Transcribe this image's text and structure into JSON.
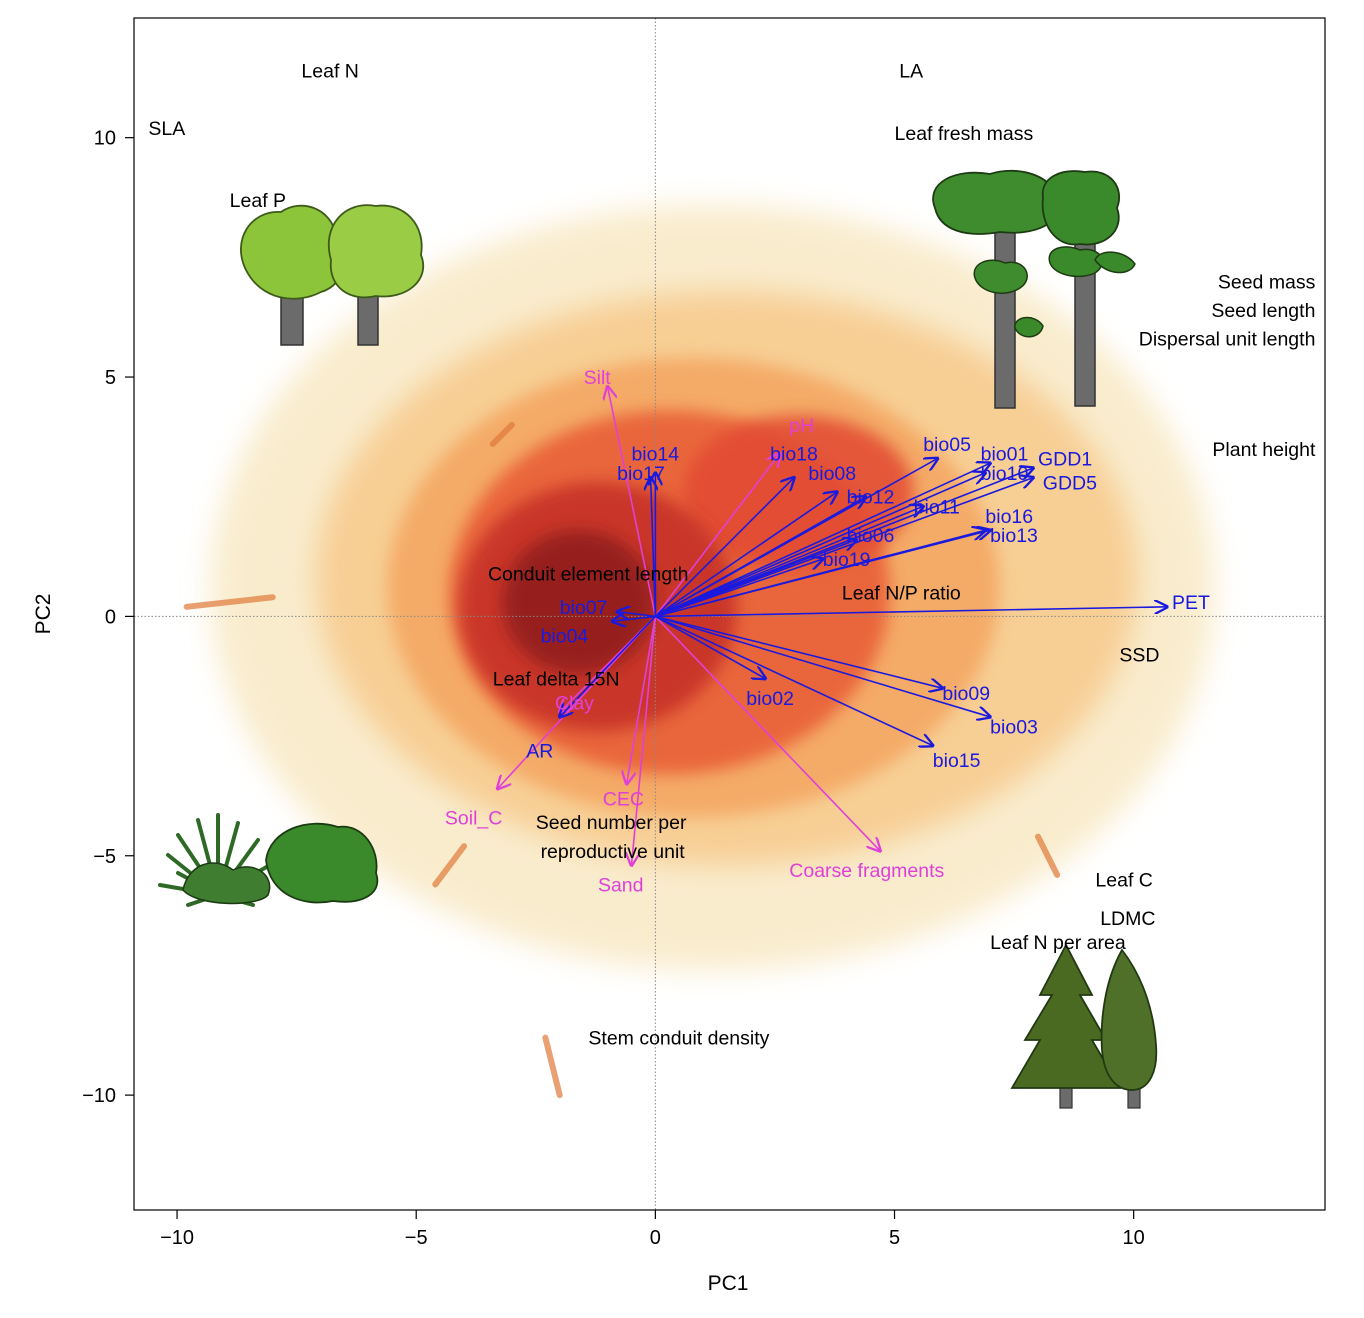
{
  "chart_data": {
    "type": "scatter",
    "subtype": "pca-biplot-density",
    "xlabel": "PC1",
    "ylabel": "PC2",
    "xlim": [
      -10.9,
      14.0
    ],
    "ylim": [
      -12.4,
      12.5
    ],
    "xticks": [
      -10,
      -5,
      0,
      5,
      10
    ],
    "yticks": [
      -10,
      -5,
      0,
      5,
      10
    ],
    "xtick_labels": [
      "−10",
      "−5",
      "0",
      "5",
      "10"
    ],
    "ytick_labels": [
      "−10",
      "−5",
      "0",
      "5",
      "10"
    ],
    "grid": false,
    "zero_lines": true,
    "colors": {
      "climate_vectors": "#1a1adf",
      "soil_vectors": "#e040d8",
      "trait_labels": "#000000",
      "density_low": "#f7e3b2",
      "density_mid": "#f08a4a",
      "density_high": "#e04a2e",
      "density_peak": "#8c1c1c"
    },
    "density_regions": [
      {
        "level": "low",
        "center": [
          1.2,
          0.6
        ],
        "radius": [
          10.5,
          8.0
        ],
        "color": "#f8e6bd"
      },
      {
        "level": "low-mid",
        "center": [
          1.5,
          0.8
        ],
        "radius": [
          8.6,
          6.0
        ],
        "color": "#f7c98b"
      },
      {
        "level": "mid",
        "center": [
          0.8,
          0.6
        ],
        "radius": [
          6.4,
          4.8
        ],
        "color": "#f4a561"
      },
      {
        "level": "high",
        "center": [
          0.3,
          0.5
        ],
        "radius": [
          4.6,
          3.8
        ],
        "color": "#e85a36"
      },
      {
        "level": "high",
        "center": [
          3.0,
          2.6
        ],
        "radius": [
          2.4,
          1.6
        ],
        "color": "#e24a30"
      },
      {
        "level": "very-high",
        "center": [
          -1.2,
          0.2
        ],
        "radius": [
          2.9,
          2.6
        ],
        "color": "#c42f26"
      },
      {
        "level": "peak",
        "center": [
          -1.6,
          0.3
        ],
        "radius": [
          1.6,
          1.5
        ],
        "color": "#8e1c1c"
      }
    ],
    "streaks": [
      {
        "from": [
          -8.0,
          0.4
        ],
        "to": [
          -9.8,
          0.2
        ]
      },
      {
        "from": [
          -3.4,
          3.6
        ],
        "to": [
          -3.0,
          4.0
        ]
      },
      {
        "from": [
          -2.3,
          -8.8
        ],
        "to": [
          -2.0,
          -10.0
        ]
      },
      {
        "from": [
          -4.0,
          -4.8
        ],
        "to": [
          -4.6,
          -5.6
        ]
      },
      {
        "from": [
          8.0,
          -4.6
        ],
        "to": [
          8.4,
          -5.4
        ]
      }
    ],
    "climate_vectors": [
      {
        "name": "PET",
        "x": 10.7,
        "y": 0.2,
        "label_x": 10.8,
        "label_y": 0.3
      },
      {
        "name": "GDD1",
        "x": 7.9,
        "y": 3.1,
        "label_x": 8.0,
        "label_y": 3.3
      },
      {
        "name": "GDD5",
        "x": 7.9,
        "y": 2.9,
        "label_x": 8.1,
        "label_y": 2.8
      },
      {
        "name": "bio01",
        "x": 7.0,
        "y": 3.2,
        "label_x": 6.8,
        "label_y": 3.4
      },
      {
        "name": "bio10",
        "x": 6.9,
        "y": 3.0,
        "label_x": 6.8,
        "label_y": 3.0
      },
      {
        "name": "bio05",
        "x": 5.9,
        "y": 3.3,
        "label_x": 5.6,
        "label_y": 3.6
      },
      {
        "name": "bio16",
        "x": 7.0,
        "y": 1.8,
        "label_x": 6.9,
        "label_y": 2.1
      },
      {
        "name": "bio13",
        "x": 6.9,
        "y": 1.8,
        "label_x": 7.0,
        "label_y": 1.7
      },
      {
        "name": "bio11",
        "x": 5.6,
        "y": 2.3,
        "label_x": 5.4,
        "label_y": 2.3
      },
      {
        "name": "bio12",
        "x": 4.4,
        "y": 2.5,
        "label_x": 4.0,
        "label_y": 2.5
      },
      {
        "name": "bio08",
        "x": 3.8,
        "y": 2.6,
        "label_x": 3.2,
        "label_y": 3.0
      },
      {
        "name": "bio18",
        "x": 2.9,
        "y": 2.9,
        "label_x": 2.4,
        "label_y": 3.4
      },
      {
        "name": "bio06",
        "x": 4.2,
        "y": 1.6,
        "label_x": 4.0,
        "label_y": 1.7
      },
      {
        "name": "bio19",
        "x": 3.5,
        "y": 1.2,
        "label_x": 3.5,
        "label_y": 1.2
      },
      {
        "name": "bio14",
        "x": 0.0,
        "y": 3.0,
        "label_x": -0.5,
        "label_y": 3.4
      },
      {
        "name": "bio17",
        "x": -0.1,
        "y": 2.9,
        "label_x": -0.8,
        "label_y": 3.0
      },
      {
        "name": "bio07",
        "x": -0.8,
        "y": 0.1,
        "label_x": -2.0,
        "label_y": 0.2
      },
      {
        "name": "bio04",
        "x": -0.9,
        "y": -0.1,
        "label_x": -2.4,
        "label_y": -0.4
      },
      {
        "name": "bio02",
        "x": 2.3,
        "y": -1.3,
        "label_x": 1.9,
        "label_y": -1.7
      },
      {
        "name": "bio09",
        "x": 6.0,
        "y": -1.5,
        "label_x": 6.0,
        "label_y": -1.6
      },
      {
        "name": "bio03",
        "x": 7.0,
        "y": -2.1,
        "label_x": 7.0,
        "label_y": -2.3
      },
      {
        "name": "bio15",
        "x": 5.8,
        "y": -2.7,
        "label_x": 5.8,
        "label_y": -3.0
      },
      {
        "name": "AR",
        "x": -2.0,
        "y": -2.1,
        "label_x": -2.7,
        "label_y": -2.8
      }
    ],
    "soil_vectors": [
      {
        "name": "Silt",
        "x": -1.0,
        "y": 4.8,
        "label_x": -1.5,
        "label_y": 5.0
      },
      {
        "name": "pH",
        "x": 2.6,
        "y": 3.4,
        "label_x": 2.8,
        "label_y": 4.0
      },
      {
        "name": "Clay",
        "x": -2.0,
        "y": -2.0,
        "label_x": -2.1,
        "label_y": -1.8
      },
      {
        "name": "Soil_C",
        "x": -3.3,
        "y": -3.6,
        "label_x": -4.4,
        "label_y": -4.2
      },
      {
        "name": "CEC",
        "x": -0.6,
        "y": -3.5,
        "label_x": -1.1,
        "label_y": -3.8
      },
      {
        "name": "Sand",
        "x": -0.5,
        "y": -5.2,
        "label_x": -1.2,
        "label_y": -5.6
      },
      {
        "name": "Coarse fragments",
        "x": 4.7,
        "y": -4.9,
        "label_x": 2.8,
        "label_y": -5.3
      }
    ],
    "trait_labels": [
      {
        "text": "Leaf N",
        "x": -7.4,
        "y": 11.4
      },
      {
        "text": "SLA",
        "x": -10.6,
        "y": 10.2
      },
      {
        "text": "Leaf P",
        "x": -8.9,
        "y": 8.7
      },
      {
        "text": "LA",
        "x": 5.1,
        "y": 11.4
      },
      {
        "text": "Leaf fresh mass",
        "x": 5.0,
        "y": 10.1
      },
      {
        "text": "Seed mass",
        "x": 11.5,
        "y": 7.0,
        "anchor": "end",
        "ax": 13.8
      },
      {
        "text": "Seed length",
        "x": 11.5,
        "y": 6.4,
        "anchor": "end",
        "ax": 13.8
      },
      {
        "text": "Dispersal unit length",
        "x": 11.5,
        "y": 5.8,
        "anchor": "end",
        "ax": 13.8
      },
      {
        "text": "Plant height",
        "x": 11.5,
        "y": 3.5,
        "anchor": "end",
        "ax": 13.8
      },
      {
        "text": "Conduit element length",
        "x": -3.5,
        "y": 0.9
      },
      {
        "text": "Leaf N/P ratio",
        "x": 3.9,
        "y": 0.5
      },
      {
        "text": "SSD",
        "x": 9.7,
        "y": -0.8
      },
      {
        "text": "Leaf delta 15N",
        "x": -3.4,
        "y": -1.3
      },
      {
        "text": "Seed number per",
        "x": -2.5,
        "y": -4.3
      },
      {
        "text": "reproductive unit",
        "x": -2.4,
        "y": -4.9
      },
      {
        "text": "Leaf C",
        "x": 9.2,
        "y": -5.5
      },
      {
        "text": "LDMC",
        "x": 9.3,
        "y": -6.3
      },
      {
        "text": "Leaf N per area",
        "x": 7.0,
        "y": -6.8
      },
      {
        "text": "Stem conduit density",
        "x": -1.4,
        "y": -8.8
      }
    ],
    "illustrations": [
      {
        "kind": "deciduous-broadleaf-trees",
        "color": "#8cc43a",
        "x": -7.4,
        "y": 7.2
      },
      {
        "kind": "tall-conifer-like-trees",
        "color": "#3f8c2f",
        "x": 8.5,
        "y": 7.2
      },
      {
        "kind": "grass-and-shrub",
        "color": "#3a8a2c",
        "x": -8.0,
        "y": -5.0
      },
      {
        "kind": "evergreen-conifers",
        "color": "#4a6a22",
        "x": 9.0,
        "y": -8.2
      }
    ]
  }
}
